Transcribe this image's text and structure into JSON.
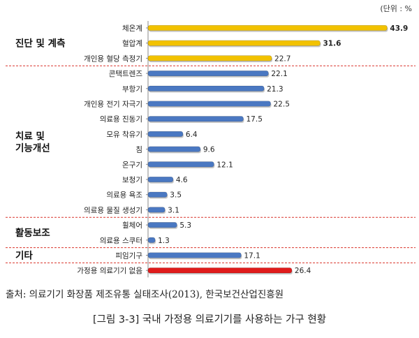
{
  "chart_data": {
    "type": "bar",
    "orientation": "horizontal",
    "unit_label": "(단위 : %",
    "groups": [
      {
        "label": "진단 및 계측",
        "items": [
          "체온계",
          "혈압계",
          "개인용 혈당 측정기"
        ]
      },
      {
        "label": "치료 및 기능개선",
        "items": [
          "콘택트렌즈",
          "부항기",
          "개인용 전기 자극기",
          "의료용 진동기",
          "모유 착유기",
          "침",
          "온구기",
          "보청기",
          "의료용 욕조",
          "의료용 물질 생성기"
        ]
      },
      {
        "label": "활동보조",
        "items": [
          "휠체어",
          "의료용 스쿠터"
        ]
      },
      {
        "label": "기타",
        "items": [
          "피임기구"
        ]
      }
    ],
    "categories": [
      "체온계",
      "혈압계",
      "개인용 혈당 측정기",
      "콘택트렌즈",
      "부항기",
      "개인용 전기 자극기",
      "의료용 진동기",
      "모유 착유기",
      "침",
      "온구기",
      "보청기",
      "의료용 욕조",
      "의료용 물질 생성기",
      "휠체어",
      "의료용 스쿠터",
      "피임기구",
      "가정용 의료기기 없음"
    ],
    "values": [
      43.9,
      31.6,
      22.7,
      22.1,
      21.3,
      22.5,
      17.5,
      6.4,
      9.6,
      12.1,
      4.6,
      3.5,
      3.1,
      5.3,
      1.3,
      17.1,
      26.4
    ],
    "value_labels": [
      "43.9",
      "31.6",
      "22.7",
      "22.1",
      "21.3",
      "22.5",
      "17.5",
      "6.4",
      "9.6",
      "12.1",
      "4.6",
      "3.5",
      "3.1",
      "5.3",
      "1.3",
      "17.1",
      "26.4"
    ],
    "bar_group": [
      "진단 및 계측",
      "진단 및 계측",
      "진단 및 계측",
      "치료 및 기능개선",
      "치료 및 기능개선",
      "치료 및 기능개선",
      "치료 및 기능개선",
      "치료 및 기능개선",
      "치료 및 기능개선",
      "치료 및 기능개선",
      "치료 및 기능개선",
      "치료 및 기능개선",
      "치료 및 기능개선",
      "활동보조",
      "활동보조",
      "기타",
      "없음"
    ],
    "colors": {
      "진단 및 계측": "#f2c200",
      "치료 및 기능개선": "#4a78c2",
      "활동보조": "#4a78c2",
      "기타": "#4a78c2",
      "없음": "#e01b1b"
    },
    "xlim": [
      0,
      45
    ]
  },
  "source_text": "출처: 의료기기 화장품 제조유통 실태조사(2013), 한국보건산업진흥원",
  "caption_text": "[그림 3-3] 국내 가정용 의료기기를 사용하는 가구 현황"
}
